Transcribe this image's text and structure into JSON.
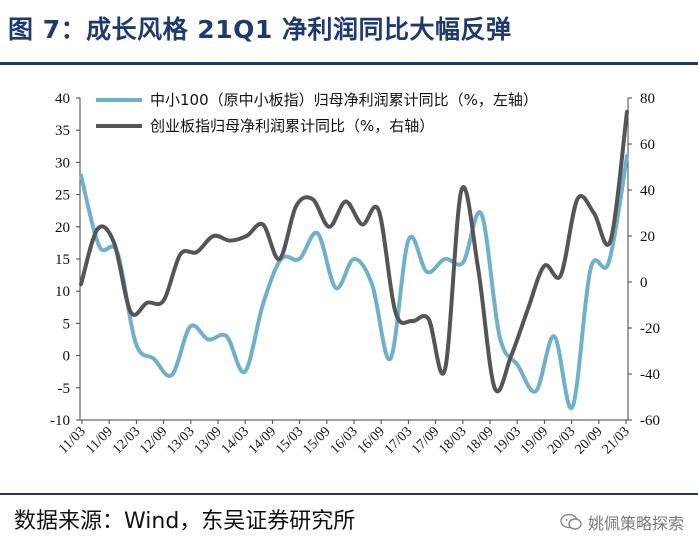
{
  "header": {
    "title": "图 7：成长风格 21Q1 净利润同比大幅反弹"
  },
  "footer": {
    "source": "数据来源：Wind，东吴证券研究所",
    "watermark": "姚佩策略探索"
  },
  "chart_data": {
    "type": "line",
    "title": "",
    "left_axis": {
      "ylim": [
        -10,
        40
      ],
      "ticks": [
        -10,
        -5,
        0,
        5,
        10,
        15,
        20,
        25,
        30,
        35,
        40
      ]
    },
    "right_axis": {
      "ylim": [
        -60,
        80
      ],
      "ticks": [
        -60,
        -40,
        -20,
        0,
        20,
        40,
        60,
        80
      ]
    },
    "x_tick_labels": [
      "11/03",
      "11/09",
      "12/03",
      "12/09",
      "13/03",
      "13/09",
      "14/03",
      "14/09",
      "15/03",
      "15/09",
      "16/03",
      "16/09",
      "17/03",
      "17/09",
      "18/03",
      "18/09",
      "19/03",
      "19/09",
      "20/03",
      "20/09",
      "21/03"
    ],
    "legend": {
      "position": "top"
    },
    "series": [
      {
        "name": "中小100（原中小板指）归母净利润累计同比（%，左轴）",
        "axis": "left",
        "color": "#6fb1c9",
        "values": [
          28,
          17,
          16,
          2,
          -0.5,
          -3,
          4.5,
          2.5,
          3,
          -2.5,
          8,
          15,
          15,
          19,
          10.5,
          15,
          11,
          -0.5,
          18,
          13,
          15,
          14.5,
          22,
          3,
          -1.5,
          -5.5,
          3,
          -8,
          13.5,
          14.5,
          31
        ]
      },
      {
        "name": "创业板指归母净利润累计同比（%，右轴）",
        "axis": "right",
        "color": "#555555",
        "values": [
          -1,
          23,
          17,
          -13,
          -9,
          -8,
          12,
          13,
          20,
          18,
          20,
          25,
          10,
          33,
          36,
          24,
          35,
          25,
          31,
          -13,
          -17,
          -16,
          -38,
          40,
          6,
          -46,
          -32,
          -12,
          7,
          3,
          36,
          30,
          18,
          74
        ]
      }
    ]
  }
}
